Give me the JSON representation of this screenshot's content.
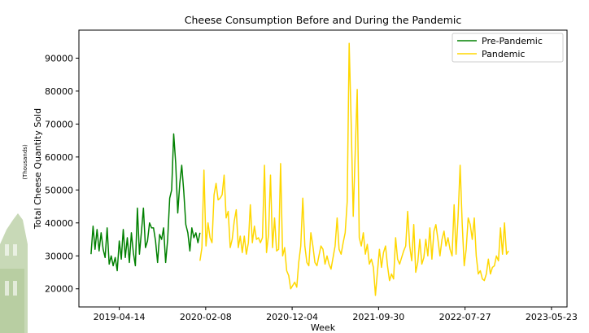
{
  "chart_data": {
    "type": "line",
    "title": "Cheese Consumption Before and During the Pandemic",
    "xlabel": "Week",
    "ylabel": "Total Cheese Quantity Sold",
    "y_units": "(Thousands)",
    "x_ticks": [
      "2019-04-14",
      "2020-02-08",
      "2020-12-04",
      "2021-09-30",
      "2022-07-27",
      "2023-05-23"
    ],
    "y_ticks": [
      20000,
      30000,
      40000,
      50000,
      60000,
      70000,
      80000,
      90000
    ],
    "xlim": [
      "2018-11-25",
      "2023-07-16"
    ],
    "ylim": [
      14500,
      98500
    ],
    "grid": false,
    "legend": "top-right",
    "colors": {
      "pre": "#008000",
      "pandemic": "#ffd700",
      "logo": "#9ab97c"
    },
    "series": [
      {
        "name": "Pre-Pandemic",
        "start_date": "2019-01-06",
        "values": [
          30500,
          39000,
          32000,
          38000,
          31500,
          37000,
          32000,
          29500,
          38500,
          27500,
          30000,
          27000,
          29500,
          25500,
          34500,
          29000,
          38000,
          29500,
          35500,
          28000,
          37000,
          31000,
          27000,
          44500,
          30500,
          37500,
          44500,
          32500,
          34500,
          40000,
          38500,
          38500,
          34500,
          28000,
          36500,
          35000,
          38500,
          28000,
          35000,
          47500,
          50000,
          67000,
          58000,
          43000,
          52000,
          57500,
          49500,
          39500,
          37000,
          31500,
          38500,
          35500,
          37000,
          34000,
          37000
        ]
      },
      {
        "name": "Pandemic",
        "start_date": "2020-01-19",
        "values": [
          28500,
          32500,
          56000,
          33000,
          40000,
          35500,
          34000,
          48500,
          52000,
          47000,
          47500,
          48500,
          54500,
          41500,
          43500,
          32500,
          35000,
          40500,
          44000,
          32500,
          36000,
          31000,
          36000,
          30500,
          34000,
          45500,
          34000,
          39000,
          35000,
          35500,
          34000,
          35500,
          57500,
          31000,
          36500,
          54500,
          32500,
          41500,
          31500,
          32000,
          58000,
          30000,
          32500,
          25500,
          24000,
          20000,
          21000,
          22000,
          20500,
          28000,
          33000,
          47500,
          33000,
          28000,
          27000,
          37000,
          33000,
          28000,
          27000,
          30000,
          33000,
          32000,
          27500,
          30000,
          27500,
          26000,
          29500,
          33000,
          41500,
          32000,
          30500,
          34000,
          37000,
          46500,
          94500,
          70000,
          42000,
          62000,
          80500,
          35500,
          33000,
          37000,
          30500,
          33500,
          27500,
          29000,
          26500,
          18000,
          25000,
          32000,
          26500,
          31000,
          33000,
          27000,
          22500,
          24500,
          23000,
          35500,
          29000,
          27500,
          29500,
          31500,
          33000,
          43500,
          33000,
          28500,
          39500,
          25000,
          28000,
          35000,
          27500,
          29500,
          35000,
          30000,
          38500,
          29000,
          37500,
          39500,
          35000,
          30000,
          35000,
          37500,
          33000,
          35500,
          32000,
          30000,
          45500,
          30500,
          42000,
          57500,
          40000,
          27000,
          32000,
          41500,
          39500,
          35000,
          41500,
          30000,
          24500,
          25500,
          23000,
          22500,
          24500,
          29000,
          24500,
          26500,
          27000,
          30000,
          28500,
          38500,
          30500,
          40000,
          30500,
          31500
        ]
      }
    ]
  }
}
